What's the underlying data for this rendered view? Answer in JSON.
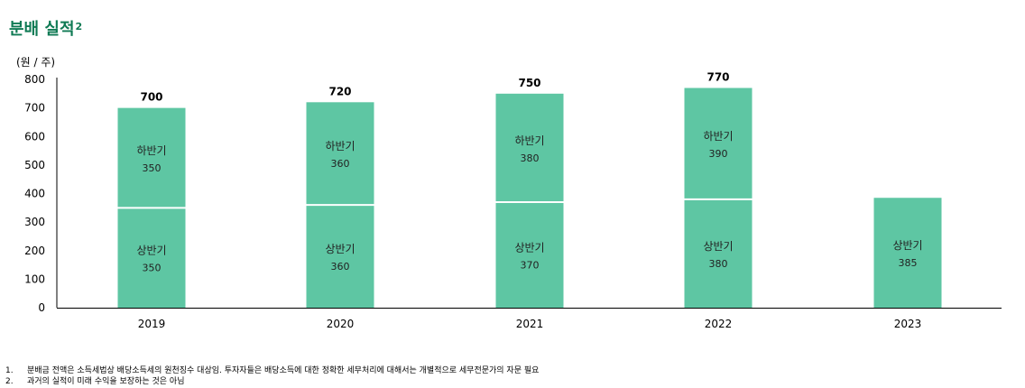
{
  "title": "분배 실적",
  "title_sup": "2",
  "unit_label": "(원 / 주)",
  "chart_data": {
    "type": "bar",
    "stacked": true,
    "categories": [
      "2019",
      "2020",
      "2021",
      "2022",
      "2023"
    ],
    "series": [
      {
        "name": "상반기",
        "values": [
          350,
          360,
          370,
          380,
          385
        ]
      },
      {
        "name": "하반기",
        "values": [
          350,
          360,
          380,
          390,
          null
        ]
      }
    ],
    "segment_labels": [
      {
        "bottom": "350",
        "top": "350"
      },
      {
        "bottom": "360",
        "top": "360"
      },
      {
        "bottom": "370",
        "top": "380"
      },
      {
        "bottom": "380",
        "top": "390"
      },
      {
        "bottom": "385",
        "top": null
      }
    ],
    "totals": [
      "700",
      "720",
      "750",
      "770",
      null
    ],
    "yticks": [
      "0",
      "100",
      "200",
      "300",
      "400",
      "500",
      "600",
      "700",
      "800"
    ],
    "ylim": [
      0,
      800
    ],
    "bar_color": "#5ec6a3",
    "grid": false
  },
  "footnotes": [
    {
      "num": "1.",
      "text": "분배금 전액은 소득세법상 배당소득세의 원천징수 대상임. 투자자들은 배당소득에 대한 정확한 세무처리에 대해서는 개별적으로 세무전문가의 자문 필요"
    },
    {
      "num": "2.",
      "text": "과거의 실적이 미래 수익을 보장하는 것은 아님"
    }
  ]
}
